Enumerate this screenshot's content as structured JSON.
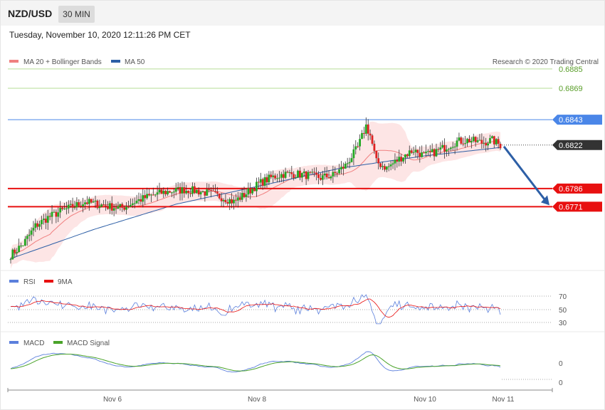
{
  "header": {
    "symbol": "NZD/USD",
    "timeframe": "30 MIN"
  },
  "datetime": "Tuesday, November 10, 2020 12:11:26 PM CET",
  "legend_main": [
    {
      "label": "MA 20 + Bollinger Bands",
      "color": "#f08080"
    },
    {
      "label": "MA 50",
      "color": "#2d5fa6"
    }
  ],
  "copyright": "Research © 2020 Trading Central",
  "colors": {
    "up": "#22a822",
    "down": "#dd2222",
    "resistance": "#4a86e8",
    "support": "#e81010",
    "target": "#7cc342",
    "last": "#333333",
    "arrow": "#2d5fa6",
    "band": "#fde0e0"
  },
  "levels": [
    {
      "value": 0.6885,
      "label": "0.6885",
      "type": "target"
    },
    {
      "value": 0.6869,
      "label": "0.6869",
      "type": "target"
    },
    {
      "value": 0.6843,
      "label": "0.6843",
      "type": "resistance"
    },
    {
      "value": 0.6822,
      "label": "0.6822",
      "type": "last"
    },
    {
      "value": 0.6786,
      "label": "0.6786",
      "type": "support"
    },
    {
      "value": 0.6771,
      "label": "0.6771",
      "type": "support"
    }
  ],
  "rsi_legend": [
    {
      "label": "RSI",
      "color": "#5b7fdc"
    },
    {
      "label": "9MA",
      "color": "#e81010"
    }
  ],
  "rsi_ticks": [
    "70",
    "50",
    "30"
  ],
  "macd_legend": [
    {
      "label": "MACD",
      "color": "#5b7fdc"
    },
    {
      "label": "MACD Signal",
      "color": "#4aa32a"
    }
  ],
  "macd_ticks": [
    "0",
    "0"
  ],
  "x_labels": [
    "Nov 6",
    "Nov 8",
    "Nov 10",
    "Nov 11"
  ],
  "chart_data": {
    "type": "candlestick",
    "instrument": "NZD/USD",
    "interval": "30 MIN",
    "y_range": [
      0.6727,
      0.6892
    ],
    "x_ticks": [
      "Nov 6",
      "Nov 8",
      "Nov 10",
      "Nov 11"
    ],
    "close_path": [
      [
        0,
        0.6731
      ],
      [
        6,
        0.674
      ],
      [
        12,
        0.6755
      ],
      [
        18,
        0.6762
      ],
      [
        24,
        0.6767
      ],
      [
        30,
        0.6771
      ],
      [
        36,
        0.6775
      ],
      [
        42,
        0.6773
      ],
      [
        48,
        0.6771
      ],
      [
        54,
        0.677
      ],
      [
        60,
        0.6775
      ],
      [
        66,
        0.6779
      ],
      [
        72,
        0.6782
      ],
      [
        78,
        0.6784
      ],
      [
        84,
        0.6785
      ],
      [
        90,
        0.6784
      ],
      [
        96,
        0.6782
      ],
      [
        102,
        0.6779
      ],
      [
        108,
        0.6775
      ],
      [
        114,
        0.6782
      ],
      [
        120,
        0.679
      ],
      [
        126,
        0.6795
      ],
      [
        132,
        0.6798
      ],
      [
        138,
        0.6798
      ],
      [
        144,
        0.6797
      ],
      [
        150,
        0.6795
      ],
      [
        156,
        0.6797
      ],
      [
        162,
        0.6805
      ],
      [
        168,
        0.682
      ],
      [
        172,
        0.6838
      ],
      [
        174,
        0.683
      ],
      [
        177,
        0.6808
      ],
      [
        182,
        0.6803
      ],
      [
        186,
        0.6808
      ],
      [
        190,
        0.6813
      ],
      [
        195,
        0.6818
      ],
      [
        200,
        0.6813
      ],
      [
        205,
        0.6816
      ],
      [
        210,
        0.682
      ],
      [
        216,
        0.6825
      ],
      [
        222,
        0.6826
      ],
      [
        228,
        0.6824
      ],
      [
        233,
        0.6826
      ],
      [
        237,
        0.6822
      ]
    ],
    "ma50": [
      [
        0,
        0.6728
      ],
      [
        40,
        0.6752
      ],
      [
        80,
        0.6773
      ],
      [
        120,
        0.6788
      ],
      [
        160,
        0.6803
      ],
      [
        200,
        0.6813
      ],
      [
        237,
        0.682
      ]
    ],
    "rsi": {
      "ticks": [
        70,
        50,
        30
      ],
      "last": 50
    },
    "macd": {
      "ticks": [
        0,
        0
      ]
    }
  }
}
